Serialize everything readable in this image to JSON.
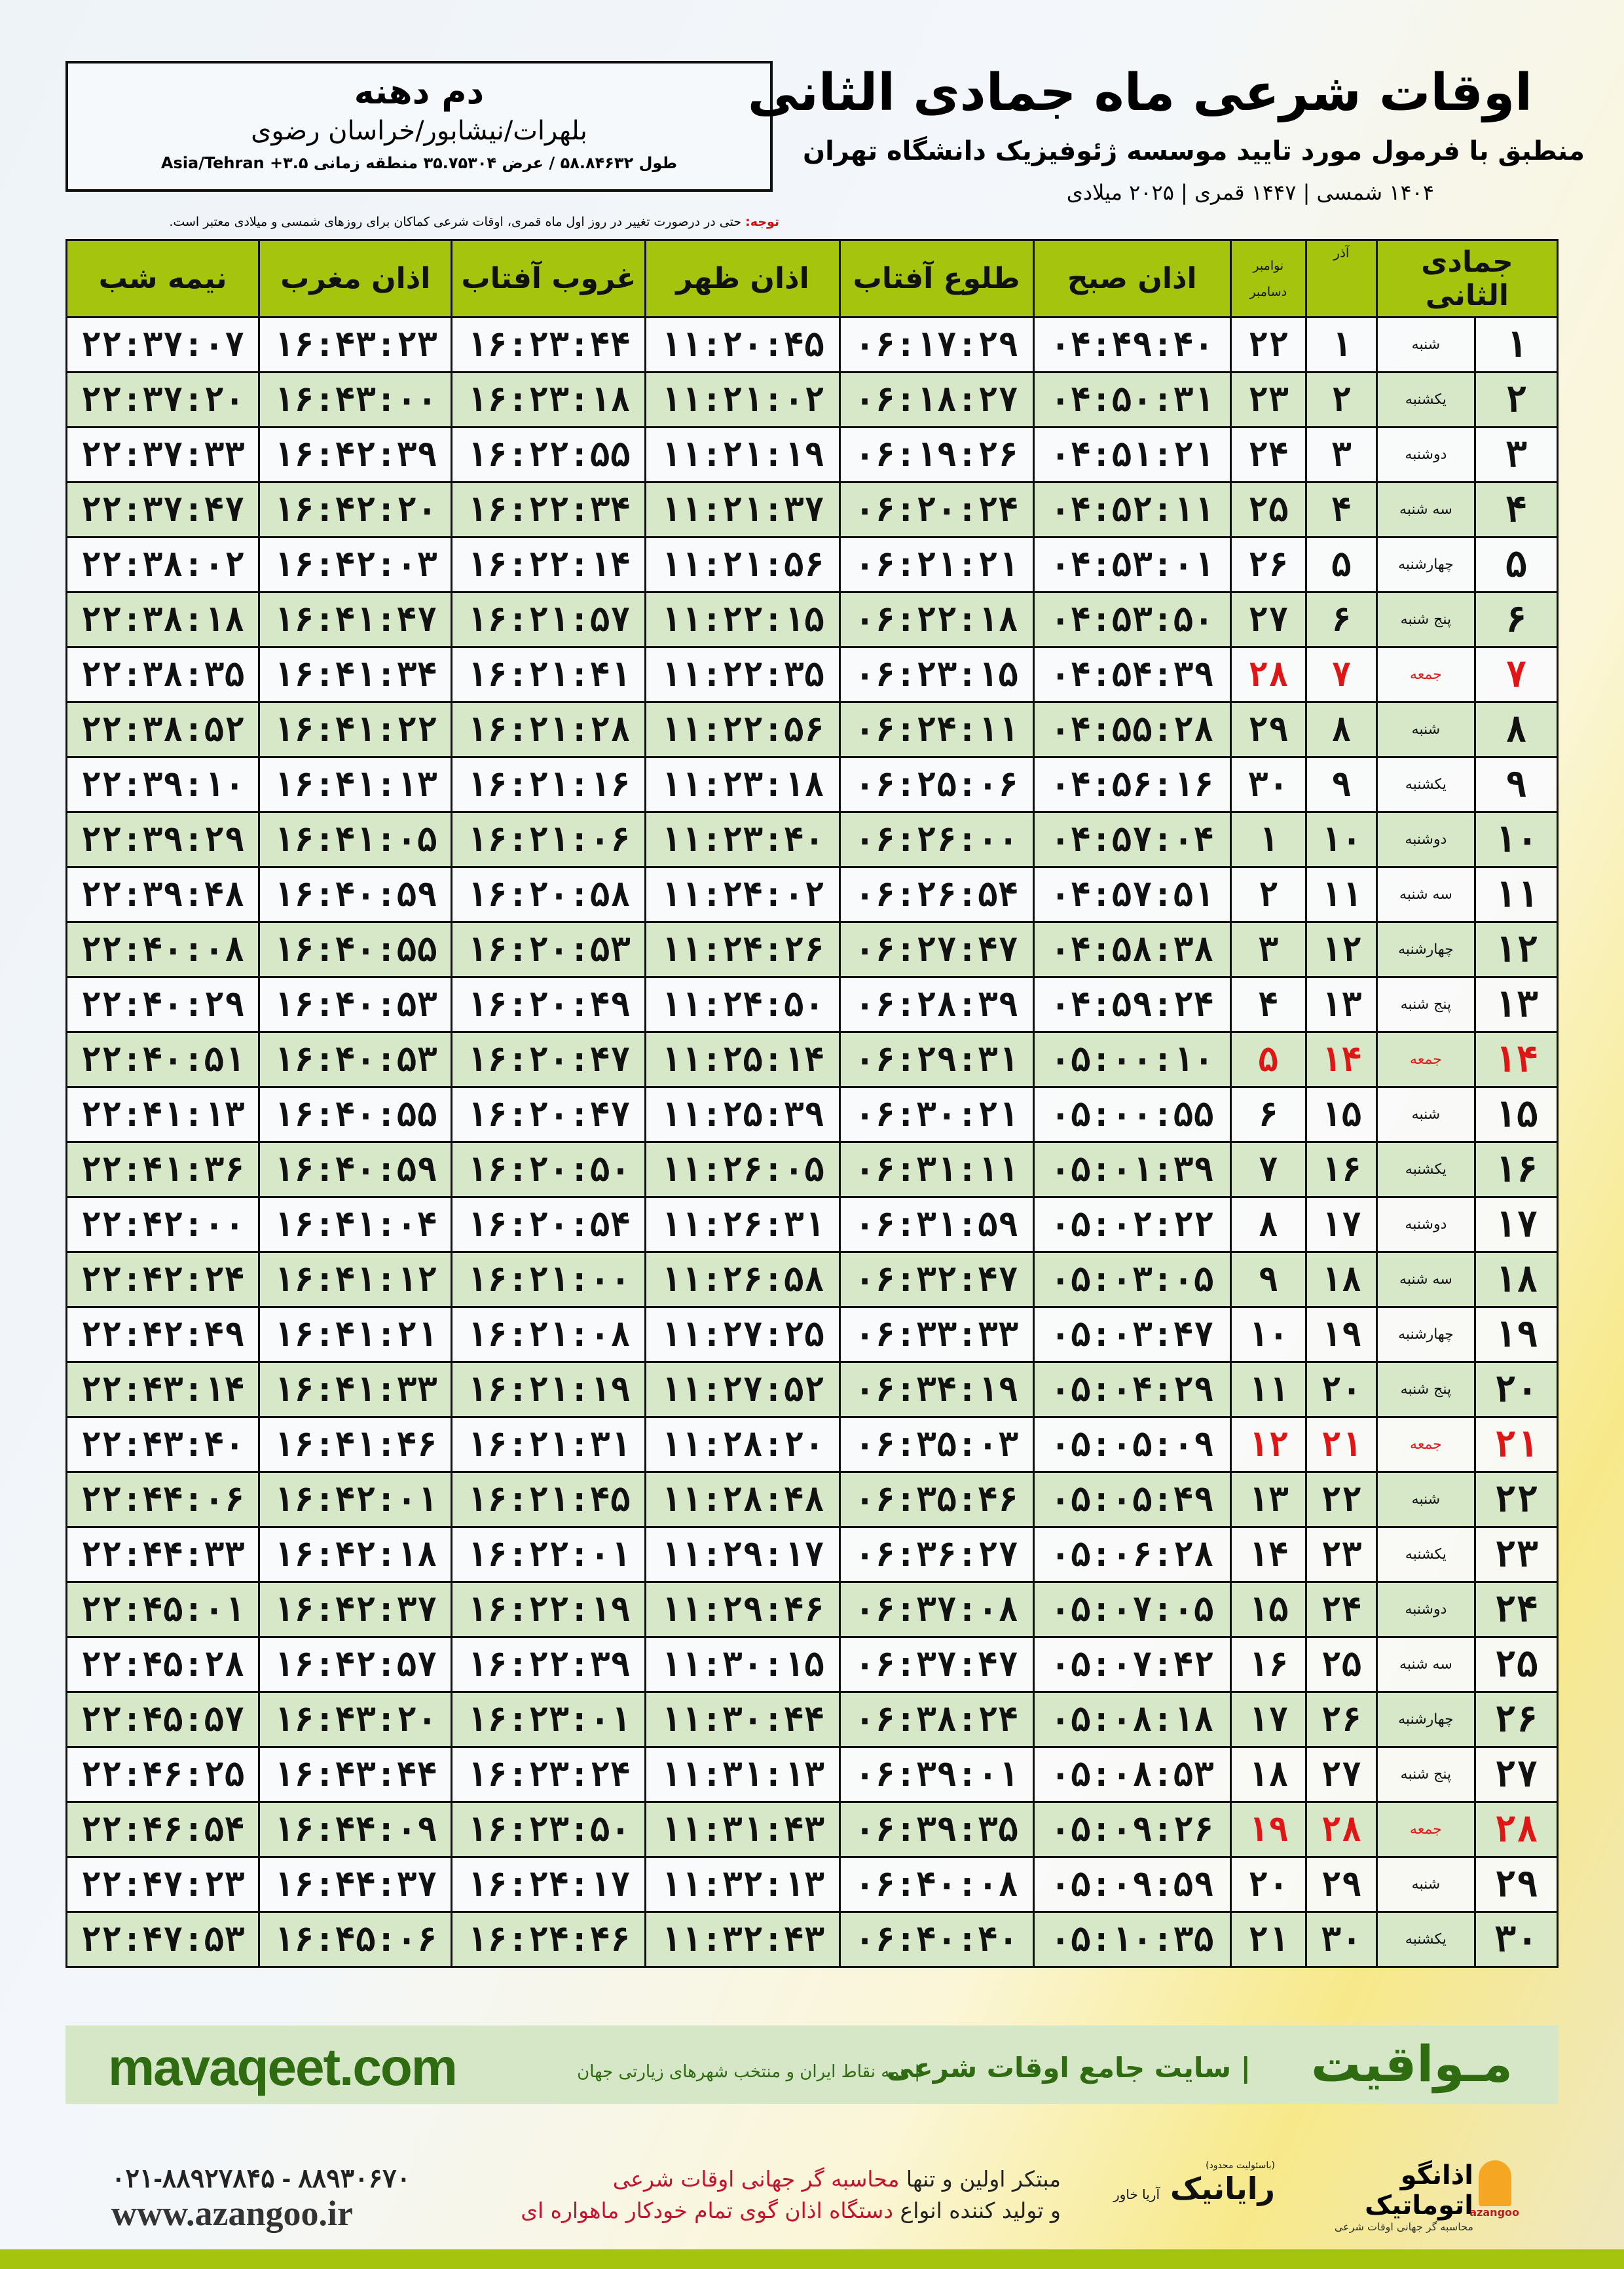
{
  "location": {
    "name": "دم دهنه",
    "path": "بلهرات/نیشابور/خراسان رضوی",
    "coords": "طول ۵۸.۸۴۶۳۲ / عرض ۳۵.۷۵۳۰۴ منطقه زمانی ۳.۵+ Asia/Tehran"
  },
  "title": "اوقات شرعی ماه جمادی الثانی",
  "subtitle": "منطبق با فرمول مورد تایید موسسه ژئوفیزیک دانشگاه تهران",
  "dates": "۱۴۰۴ شمسی | ۱۴۴۷ قمری | ۲۰۲۵ میلادی",
  "note": {
    "label": "توجه:",
    "text": " حتی در درصورت تغییر در روز اول ماه قمری، اوقات شرعی کماکان برای روزهای شمسی و میلادی معتبر است."
  },
  "headers": {
    "hijri": "جمادی الثانی",
    "azar": "آذر",
    "greg_top": "نوامبر",
    "greg_bottom": "دسامبر",
    "fajr": "اذان صبح",
    "sunrise": "طلوع آفتاب",
    "dhuhr": "اذان ظهر",
    "sunset": "غروب آفتاب",
    "maghrib": "اذان مغرب",
    "midnight": "نیمه شب"
  },
  "colors": {
    "header": "#a5c40e",
    "row_alt": "#d6e8c8",
    "holiday": "#e01616"
  },
  "rows": [
    [
      "۱",
      "شنبه",
      "۱",
      "۲۲",
      "۰۴:۴۹:۴۰",
      "۰۶:۱۷:۲۹",
      "۱۱:۲۰:۴۵",
      "۱۶:۲۳:۴۴",
      "۱۶:۴۳:۲۳",
      "۲۲:۳۷:۰۷"
    ],
    [
      "۲",
      "یکشنبه",
      "۲",
      "۲۳",
      "۰۴:۵۰:۳۱",
      "۰۶:۱۸:۲۷",
      "۱۱:۲۱:۰۲",
      "۱۶:۲۳:۱۸",
      "۱۶:۴۳:۰۰",
      "۲۲:۳۷:۲۰"
    ],
    [
      "۳",
      "دوشنبه",
      "۳",
      "۲۴",
      "۰۴:۵۱:۲۱",
      "۰۶:۱۹:۲۶",
      "۱۱:۲۱:۱۹",
      "۱۶:۲۲:۵۵",
      "۱۶:۴۲:۳۹",
      "۲۲:۳۷:۳۳"
    ],
    [
      "۴",
      "سه شنبه",
      "۴",
      "۲۵",
      "۰۴:۵۲:۱۱",
      "۰۶:۲۰:۲۴",
      "۱۱:۲۱:۳۷",
      "۱۶:۲۲:۳۴",
      "۱۶:۴۲:۲۰",
      "۲۲:۳۷:۴۷"
    ],
    [
      "۵",
      "چهارشنبه",
      "۵",
      "۲۶",
      "۰۴:۵۳:۰۱",
      "۰۶:۲۱:۲۱",
      "۱۱:۲۱:۵۶",
      "۱۶:۲۲:۱۴",
      "۱۶:۴۲:۰۳",
      "۲۲:۳۸:۰۲"
    ],
    [
      "۶",
      "پنج شنبه",
      "۶",
      "۲۷",
      "۰۴:۵۳:۵۰",
      "۰۶:۲۲:۱۸",
      "۱۱:۲۲:۱۵",
      "۱۶:۲۱:۵۷",
      "۱۶:۴۱:۴۷",
      "۲۲:۳۸:۱۸"
    ],
    [
      "۷",
      "جمعه",
      "۷",
      "۲۸",
      "۰۴:۵۴:۳۹",
      "۰۶:۲۳:۱۵",
      "۱۱:۲۲:۳۵",
      "۱۶:۲۱:۴۱",
      "۱۶:۴۱:۳۴",
      "۲۲:۳۸:۳۵"
    ],
    [
      "۸",
      "شنبه",
      "۸",
      "۲۹",
      "۰۴:۵۵:۲۸",
      "۰۶:۲۴:۱۱",
      "۱۱:۲۲:۵۶",
      "۱۶:۲۱:۲۸",
      "۱۶:۴۱:۲۲",
      "۲۲:۳۸:۵۲"
    ],
    [
      "۹",
      "یکشنبه",
      "۹",
      "۳۰",
      "۰۴:۵۶:۱۶",
      "۰۶:۲۵:۰۶",
      "۱۱:۲۳:۱۸",
      "۱۶:۲۱:۱۶",
      "۱۶:۴۱:۱۳",
      "۲۲:۳۹:۱۰"
    ],
    [
      "۱۰",
      "دوشنبه",
      "۱۰",
      "۱",
      "۰۴:۵۷:۰۴",
      "۰۶:۲۶:۰۰",
      "۱۱:۲۳:۴۰",
      "۱۶:۲۱:۰۶",
      "۱۶:۴۱:۰۵",
      "۲۲:۳۹:۲۹"
    ],
    [
      "۱۱",
      "سه شنبه",
      "۱۱",
      "۲",
      "۰۴:۵۷:۵۱",
      "۰۶:۲۶:۵۴",
      "۱۱:۲۴:۰۲",
      "۱۶:۲۰:۵۸",
      "۱۶:۴۰:۵۹",
      "۲۲:۳۹:۴۸"
    ],
    [
      "۱۲",
      "چهارشنبه",
      "۱۲",
      "۳",
      "۰۴:۵۸:۳۸",
      "۰۶:۲۷:۴۷",
      "۱۱:۲۴:۲۶",
      "۱۶:۲۰:۵۳",
      "۱۶:۴۰:۵۵",
      "۲۲:۴۰:۰۸"
    ],
    [
      "۱۳",
      "پنج شنبه",
      "۱۳",
      "۴",
      "۰۴:۵۹:۲۴",
      "۰۶:۲۸:۳۹",
      "۱۱:۲۴:۵۰",
      "۱۶:۲۰:۴۹",
      "۱۶:۴۰:۵۳",
      "۲۲:۴۰:۲۹"
    ],
    [
      "۱۴",
      "جمعه",
      "۱۴",
      "۵",
      "۰۵:۰۰:۱۰",
      "۰۶:۲۹:۳۱",
      "۱۱:۲۵:۱۴",
      "۱۶:۲۰:۴۷",
      "۱۶:۴۰:۵۳",
      "۲۲:۴۰:۵۱"
    ],
    [
      "۱۵",
      "شنبه",
      "۱۵",
      "۶",
      "۰۵:۰۰:۵۵",
      "۰۶:۳۰:۲۱",
      "۱۱:۲۵:۳۹",
      "۱۶:۲۰:۴۷",
      "۱۶:۴۰:۵۵",
      "۲۲:۴۱:۱۳"
    ],
    [
      "۱۶",
      "یکشنبه",
      "۱۶",
      "۷",
      "۰۵:۰۱:۳۹",
      "۰۶:۳۱:۱۱",
      "۱۱:۲۶:۰۵",
      "۱۶:۲۰:۵۰",
      "۱۶:۴۰:۵۹",
      "۲۲:۴۱:۳۶"
    ],
    [
      "۱۷",
      "دوشنبه",
      "۱۷",
      "۸",
      "۰۵:۰۲:۲۲",
      "۰۶:۳۱:۵۹",
      "۱۱:۲۶:۳۱",
      "۱۶:۲۰:۵۴",
      "۱۶:۴۱:۰۴",
      "۲۲:۴۲:۰۰"
    ],
    [
      "۱۸",
      "سه شنبه",
      "۱۸",
      "۹",
      "۰۵:۰۳:۰۵",
      "۰۶:۳۲:۴۷",
      "۱۱:۲۶:۵۸",
      "۱۶:۲۱:۰۰",
      "۱۶:۴۱:۱۲",
      "۲۲:۴۲:۲۴"
    ],
    [
      "۱۹",
      "چهارشنبه",
      "۱۹",
      "۱۰",
      "۰۵:۰۳:۴۷",
      "۰۶:۳۳:۳۳",
      "۱۱:۲۷:۲۵",
      "۱۶:۲۱:۰۸",
      "۱۶:۴۱:۲۱",
      "۲۲:۴۲:۴۹"
    ],
    [
      "۲۰",
      "پنج شنبه",
      "۲۰",
      "۱۱",
      "۰۵:۰۴:۲۹",
      "۰۶:۳۴:۱۹",
      "۱۱:۲۷:۵۲",
      "۱۶:۲۱:۱۹",
      "۱۶:۴۱:۳۳",
      "۲۲:۴۳:۱۴"
    ],
    [
      "۲۱",
      "جمعه",
      "۲۱",
      "۱۲",
      "۰۵:۰۵:۰۹",
      "۰۶:۳۵:۰۳",
      "۱۱:۲۸:۲۰",
      "۱۶:۲۱:۳۱",
      "۱۶:۴۱:۴۶",
      "۲۲:۴۳:۴۰"
    ],
    [
      "۲۲",
      "شنبه",
      "۲۲",
      "۱۳",
      "۰۵:۰۵:۴۹",
      "۰۶:۳۵:۴۶",
      "۱۱:۲۸:۴۸",
      "۱۶:۲۱:۴۵",
      "۱۶:۴۲:۰۱",
      "۲۲:۴۴:۰۶"
    ],
    [
      "۲۳",
      "یکشنبه",
      "۲۳",
      "۱۴",
      "۰۵:۰۶:۲۸",
      "۰۶:۳۶:۲۷",
      "۱۱:۲۹:۱۷",
      "۱۶:۲۲:۰۱",
      "۱۶:۴۲:۱۸",
      "۲۲:۴۴:۳۳"
    ],
    [
      "۲۴",
      "دوشنبه",
      "۲۴",
      "۱۵",
      "۰۵:۰۷:۰۵",
      "۰۶:۳۷:۰۸",
      "۱۱:۲۹:۴۶",
      "۱۶:۲۲:۱۹",
      "۱۶:۴۲:۳۷",
      "۲۲:۴۵:۰۱"
    ],
    [
      "۲۵",
      "سه شنبه",
      "۲۵",
      "۱۶",
      "۰۵:۰۷:۴۲",
      "۰۶:۳۷:۴۷",
      "۱۱:۳۰:۱۵",
      "۱۶:۲۲:۳۹",
      "۱۶:۴۲:۵۷",
      "۲۲:۴۵:۲۸"
    ],
    [
      "۲۶",
      "چهارشنبه",
      "۲۶",
      "۱۷",
      "۰۵:۰۸:۱۸",
      "۰۶:۳۸:۲۴",
      "۱۱:۳۰:۴۴",
      "۱۶:۲۳:۰۱",
      "۱۶:۴۳:۲۰",
      "۲۲:۴۵:۵۷"
    ],
    [
      "۲۷",
      "پنج شنبه",
      "۲۷",
      "۱۸",
      "۰۵:۰۸:۵۳",
      "۰۶:۳۹:۰۱",
      "۱۱:۳۱:۱۳",
      "۱۶:۲۳:۲۴",
      "۱۶:۴۳:۴۴",
      "۲۲:۴۶:۲۵"
    ],
    [
      "۲۸",
      "جمعه",
      "۲۸",
      "۱۹",
      "۰۵:۰۹:۲۶",
      "۰۶:۳۹:۳۵",
      "۱۱:۳۱:۴۳",
      "۱۶:۲۳:۵۰",
      "۱۶:۴۴:۰۹",
      "۲۲:۴۶:۵۴"
    ],
    [
      "۲۹",
      "شنبه",
      "۲۹",
      "۲۰",
      "۰۵:۰۹:۵۹",
      "۰۶:۴۰:۰۸",
      "۱۱:۳۲:۱۳",
      "۱۶:۲۴:۱۷",
      "۱۶:۴۴:۳۷",
      "۲۲:۴۷:۲۳"
    ],
    [
      "۳۰",
      "یکشنبه",
      "۳۰",
      "۲۱",
      "۰۵:۱۰:۳۵",
      "۰۶:۴۰:۴۰",
      "۱۱:۳۲:۴۳",
      "۱۶:۲۴:۴۶",
      "۱۶:۴۵:۰۶",
      "۲۲:۴۷:۵۳"
    ]
  ],
  "holiday_weekday": "جمعه",
  "banner": {
    "logo": "مـواقیت",
    "tagline": "| سایت جامع اوقات شرعی",
    "sub": "| همه نقاط ایران و منتخب شهرهای زیارتی جهان",
    "url": "mavaqeet.com"
  },
  "footer": {
    "phone": "۰۲۱-۸۸۹۲۷۸۴۵ - ۸۸۹۳۰۶۷۰",
    "web": "www.azangoo.ir",
    "line1_a": "مبتکر اولین و تنها ",
    "line1_b": "محاسبه گر جهانی اوقات شرعی",
    "line2_a": "و تولید کننده انواع ",
    "line2_b": "دستگاه اذان گوی تمام خودکار ماهواره ای",
    "logo1_pre": "(باسئولیت محدود)",
    "logo1": "رایانیک",
    "logo1_side": "آریا خاور",
    "logo2": "اذانگو اتوماتیک",
    "logo2_sub": "محاسبه گر جهانی اوقات شرعی",
    "logo2_brand": "azangoo"
  }
}
